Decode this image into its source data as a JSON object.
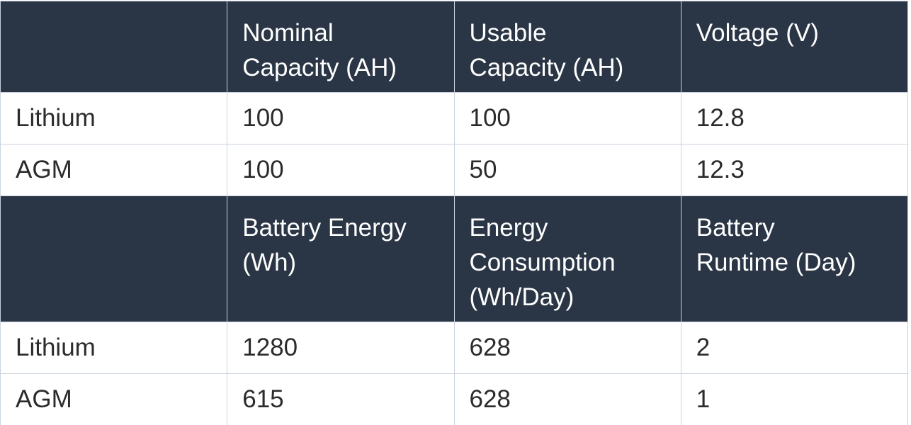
{
  "sections": [
    {
      "header": [
        [
          "Nominal",
          "Capacity (AH)"
        ],
        [
          "Usable",
          "Capacity (AH)"
        ],
        [
          "Voltage (V)"
        ]
      ],
      "rows": [
        [
          "Lithium",
          100,
          100,
          12.8
        ],
        [
          "AGM",
          100,
          50,
          12.3
        ]
      ]
    },
    {
      "header": [
        [
          "Battery Energy",
          "(Wh)"
        ],
        [
          "Energy",
          "Consumption",
          "(Wh/Day)"
        ],
        [
          "Battery",
          "Runtime (Day)"
        ]
      ],
      "rows": [
        [
          "Lithium",
          1280,
          628,
          2
        ],
        [
          "AGM",
          615,
          628,
          1
        ]
      ]
    }
  ]
}
